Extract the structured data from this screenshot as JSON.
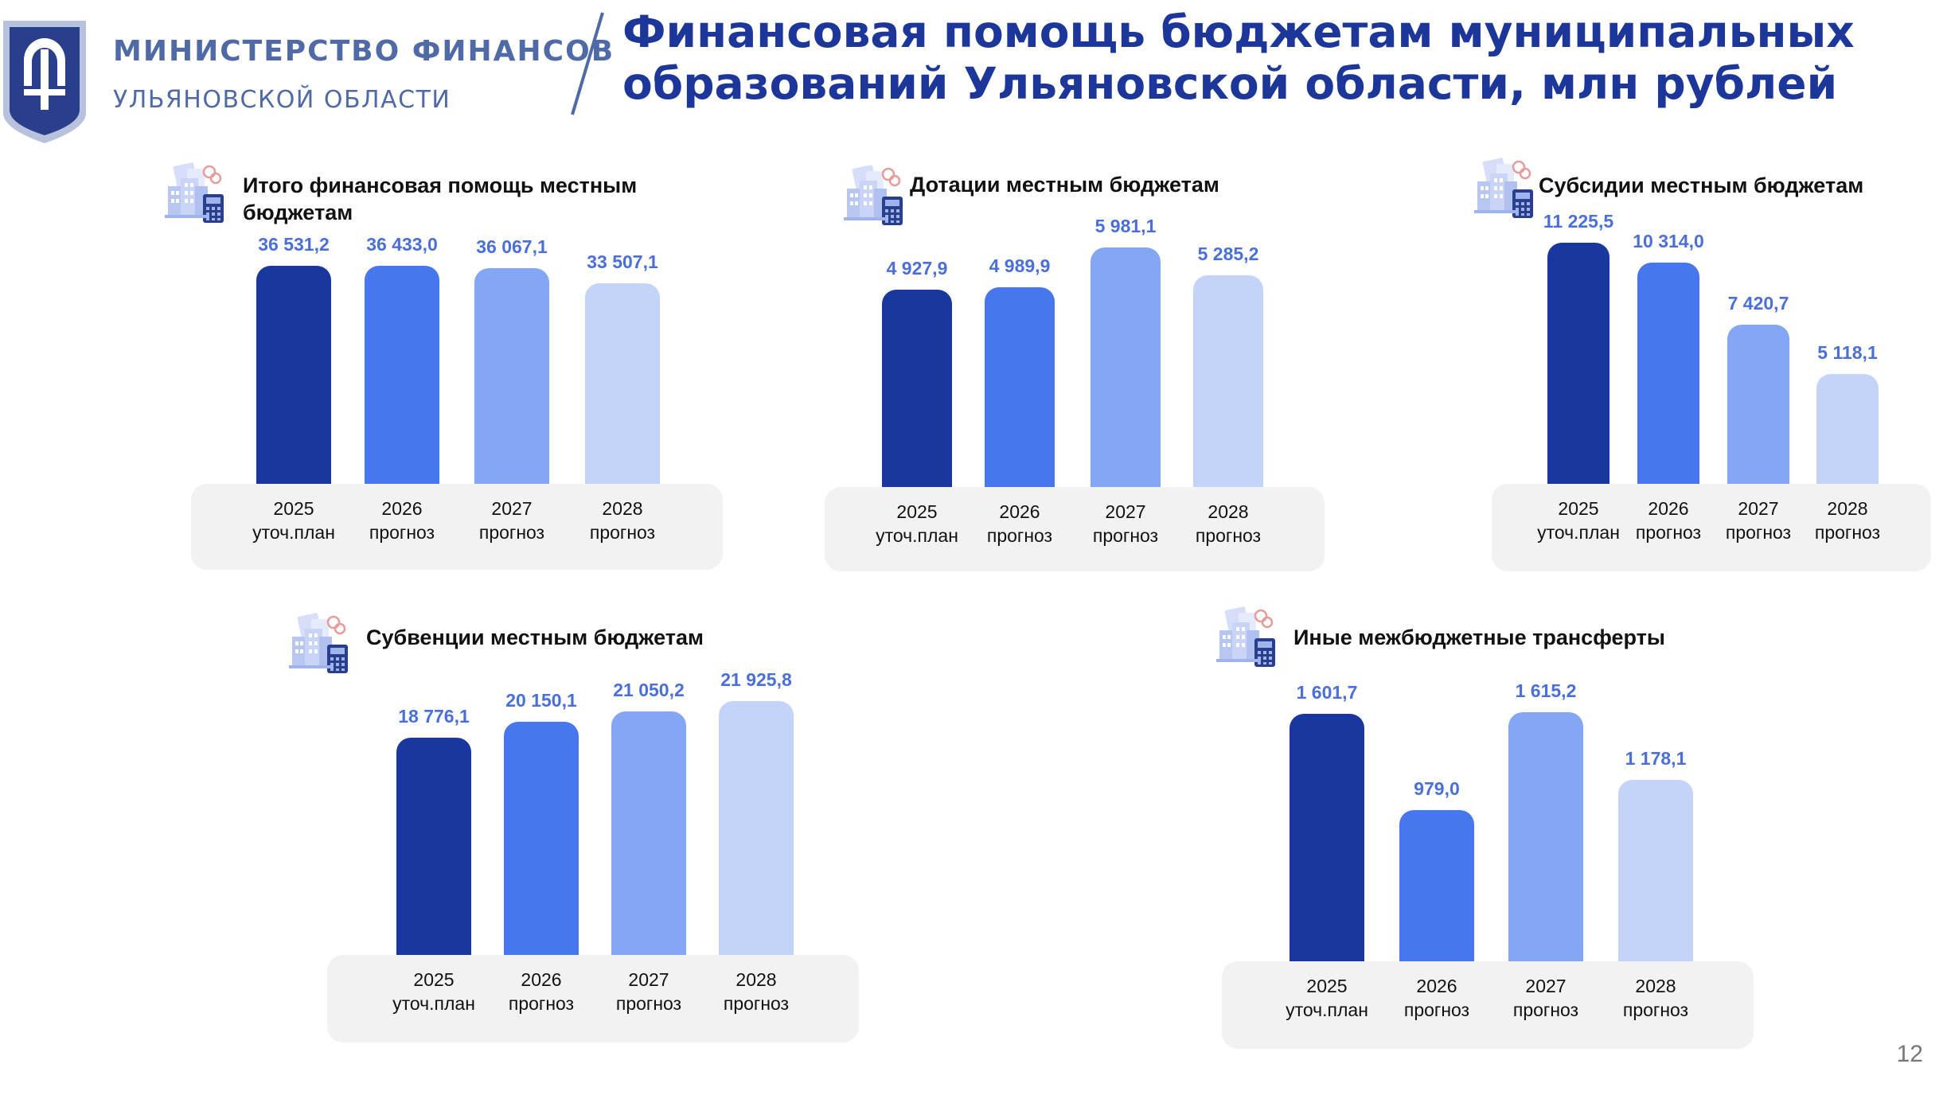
{
  "header": {
    "ministry_name": "МИНИСТЕРСТВО ФИНАНСОВ",
    "ministry_sub": "УЛЬЯНОВСКОЙ ОБЛАСТИ",
    "title_line1": "Финансовая помощь бюджетам муниципальных",
    "title_line2": "образований Ульяновской области, млн рублей"
  },
  "colors": {
    "brand": "#1c3799",
    "bar_2025": "#1a37a0",
    "bar_2026": "#4677ee",
    "bar_2027": "#83a6f5",
    "bar_2028": "#c3d4f8",
    "value_label": "#4a6fd8",
    "axis_base": "#f2f2f2"
  },
  "icons": [
    "emblem-icon",
    "city-budget-calculator-icon"
  ],
  "chart_data": [
    {
      "type": "bar",
      "title_lines": [
        "Итого финансовая помощь местным",
        "бюджетам"
      ],
      "categories": [
        [
          "2025",
          "уточ.план"
        ],
        [
          "2026",
          "прогноз"
        ],
        [
          "2027",
          "прогноз"
        ],
        [
          "2028",
          "прогноз"
        ]
      ],
      "values": [
        36531.2,
        36433.0,
        36067.1,
        33507.1
      ],
      "value_labels": [
        "36 531,2",
        "36 433,0",
        "36 067,1",
        "33 507,1"
      ],
      "ylim": [
        0,
        37000
      ],
      "grid": false,
      "legend": "none"
    },
    {
      "type": "bar",
      "title_lines": [
        "Дотации местным бюджетам"
      ],
      "categories": [
        [
          "2025",
          "уточ.план"
        ],
        [
          "2026",
          "прогноз"
        ],
        [
          "2027",
          "прогноз"
        ],
        [
          "2028",
          "прогноз"
        ]
      ],
      "values": [
        4927.9,
        4989.9,
        5981.1,
        5285.2
      ],
      "value_labels": [
        "4 927,9",
        "4 989,9",
        "5 981,1",
        "5 285,2"
      ],
      "ylim": [
        0,
        6000
      ],
      "grid": false,
      "legend": "none"
    },
    {
      "type": "bar",
      "title_lines": [
        "Субсидии местным бюджетам"
      ],
      "categories": [
        [
          "2025",
          "уточ.план"
        ],
        [
          "2026",
          "прогноз"
        ],
        [
          "2027",
          "прогноз"
        ],
        [
          "2028",
          "прогноз"
        ]
      ],
      "values": [
        11225.5,
        10314.0,
        7420.7,
        5118.1
      ],
      "value_labels": [
        "11 225,5",
        "10 314,0",
        "7 420,7",
        "5 118,1"
      ],
      "ylim": [
        0,
        11300
      ],
      "grid": false,
      "legend": "none"
    },
    {
      "type": "bar",
      "title_lines": [
        "Субвенции местным бюджетам"
      ],
      "categories": [
        [
          "2025",
          "уточ.план"
        ],
        [
          "2026",
          "прогноз"
        ],
        [
          "2027",
          "прогноз"
        ],
        [
          "2028",
          "прогноз"
        ]
      ],
      "values": [
        18776.1,
        20150.1,
        21050.2,
        21925.8
      ],
      "value_labels": [
        "18 776,1",
        "20 150,1",
        "21 050,2",
        "21 925,8"
      ],
      "ylim": [
        0,
        22000
      ],
      "grid": false,
      "legend": "none"
    },
    {
      "type": "bar",
      "title_lines": [
        "Иные межбюджетные трансферты"
      ],
      "categories": [
        [
          "2025",
          "уточ.план"
        ],
        [
          "2026",
          "прогноз"
        ],
        [
          "2027",
          "прогноз"
        ],
        [
          "2028",
          "прогноз"
        ]
      ],
      "values": [
        1601.7,
        979.0,
        1615.2,
        1178.1
      ],
      "value_labels": [
        "1 601,7",
        "979,0",
        "1 615,2",
        "1 178,1"
      ],
      "ylim": [
        0,
        1650
      ],
      "grid": false,
      "legend": "none"
    }
  ],
  "page_number": "12"
}
